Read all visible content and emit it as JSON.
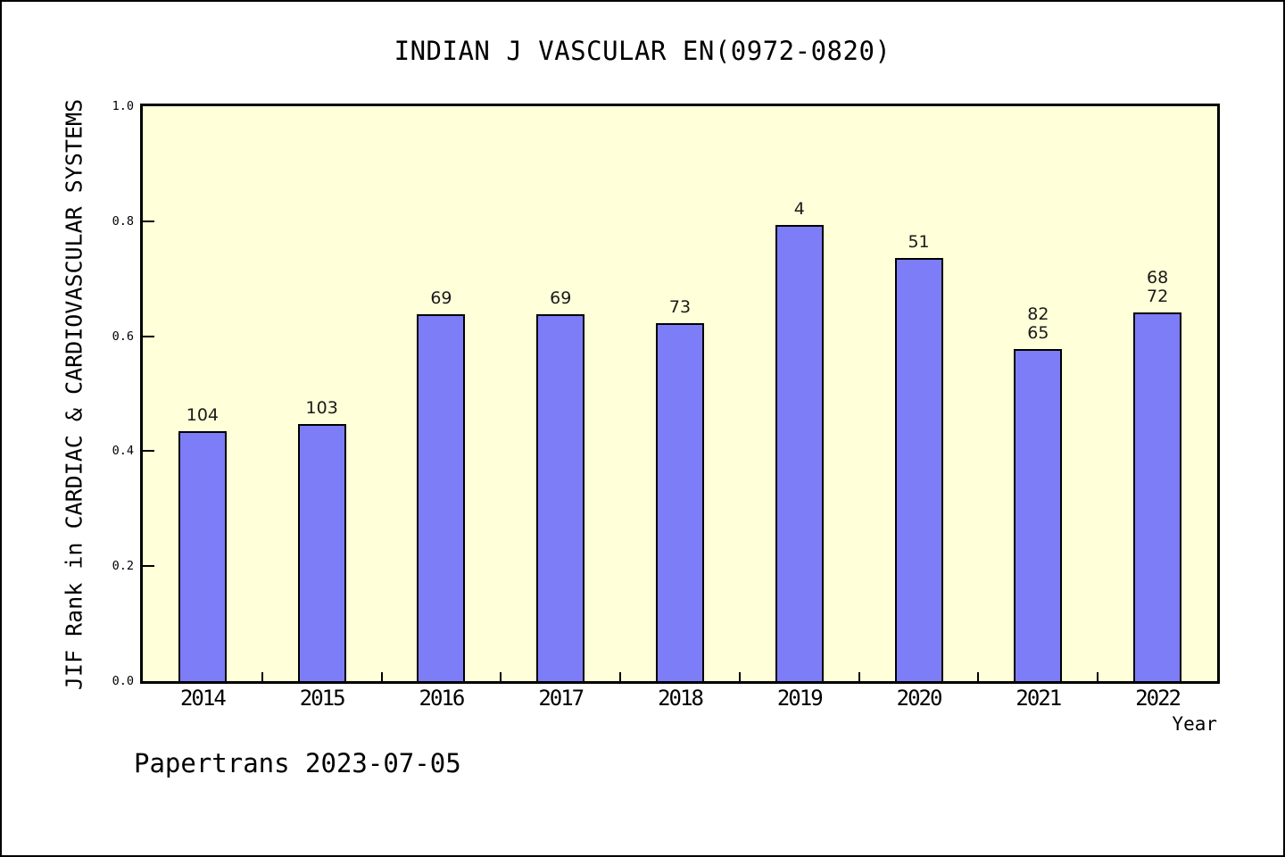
{
  "chart_data": {
    "type": "bar",
    "title": "INDIAN J VASCULAR EN(0972-0820)",
    "xlabel": "Year",
    "ylabel": "JIF Rank in CARDIAC & CARDIOVASCULAR SYSTEMS",
    "ylim": [
      0.0,
      1.0
    ],
    "y_ticks": [
      "0.0",
      "0.2",
      "0.4",
      "0.6",
      "0.8",
      "1.0"
    ],
    "grid": false,
    "legend": null,
    "plot_bg_color": "#ffffd9",
    "bar_color": "#7d7df8",
    "bar_border_color": "#000000",
    "categories": [
      "2014",
      "2015",
      "2016",
      "2017",
      "2018",
      "2019",
      "2020",
      "2021",
      "2022"
    ],
    "bars": [
      {
        "year": "2014",
        "rank_labels": [
          "104"
        ],
        "bar_top": 0.435
      },
      {
        "year": "2015",
        "rank_labels": [
          "103"
        ],
        "bar_top": 0.448
      },
      {
        "year": "2016",
        "rank_labels": [
          "69"
        ],
        "bar_top": 0.638
      },
      {
        "year": "2017",
        "rank_labels": [
          "69"
        ],
        "bar_top": 0.638
      },
      {
        "year": "2018",
        "rank_labels": [
          "73"
        ],
        "bar_top": 0.622
      },
      {
        "year": "2019",
        "rank_labels": [
          "4"
        ],
        "bar_top": 0.793
      },
      {
        "year": "2020",
        "rank_labels": [
          "51"
        ],
        "bar_top": 0.736
      },
      {
        "year": "2021",
        "rank_labels": [
          "82",
          "65"
        ],
        "bar_top": 0.578
      },
      {
        "year": "2022",
        "rank_labels": [
          "68",
          "72"
        ],
        "bar_top": 0.642
      }
    ]
  },
  "footer": {
    "watermark": "Papertrans 2023-07-05"
  }
}
